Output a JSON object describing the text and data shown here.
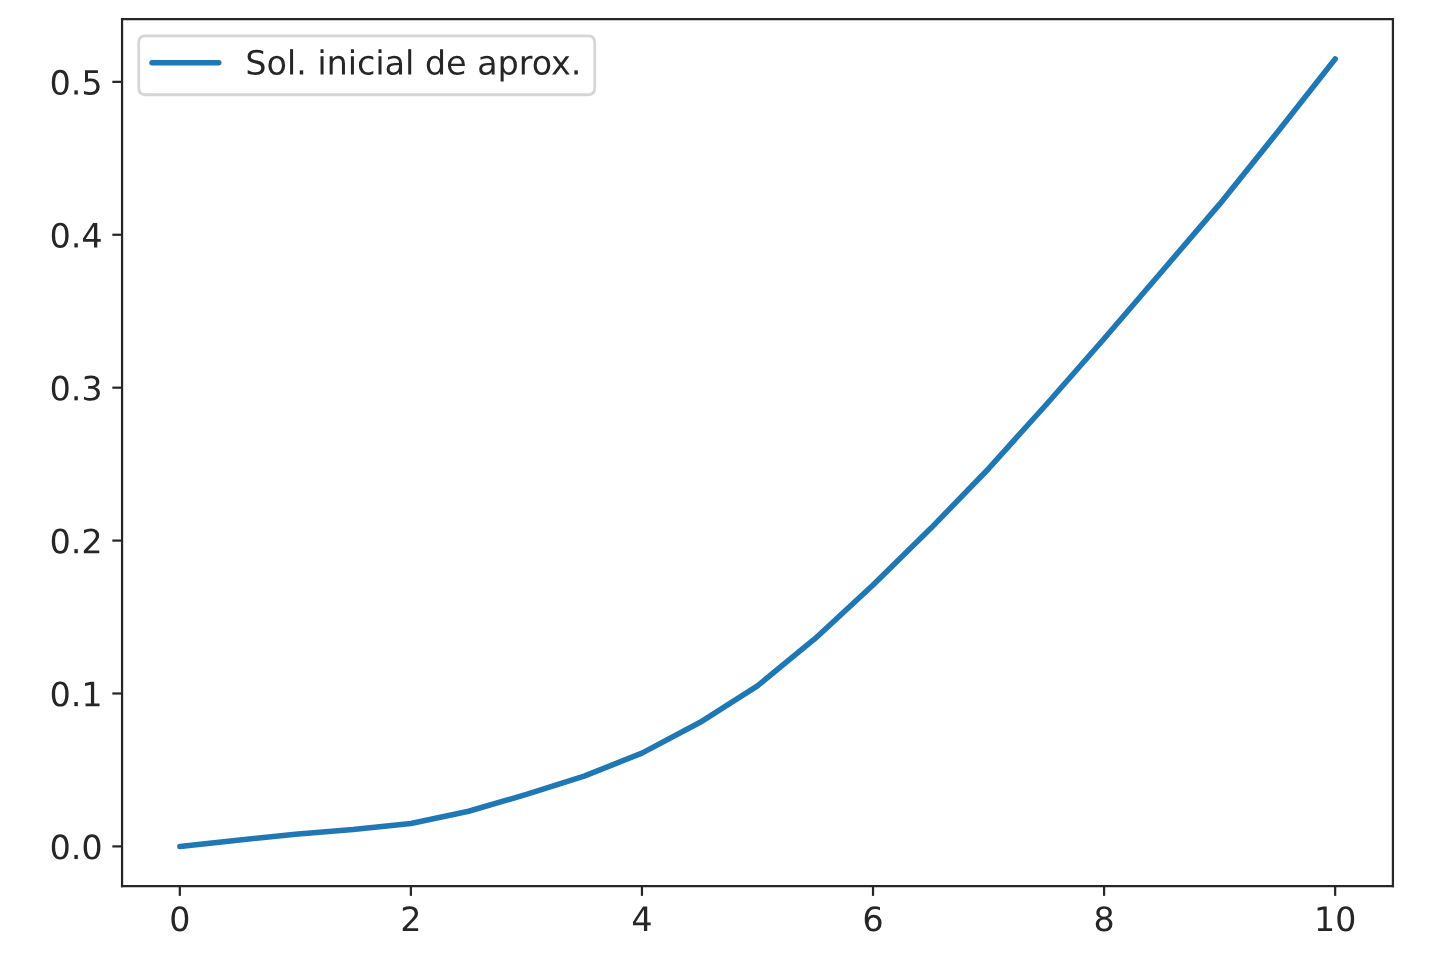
{
  "chart_data": {
    "type": "line",
    "x": [
      0,
      0.5,
      1,
      1.5,
      2,
      2.5,
      3,
      3.5,
      4,
      4.5,
      5,
      5.5,
      6,
      6.5,
      7,
      7.5,
      8,
      8.5,
      9,
      9.5,
      10
    ],
    "series": [
      {
        "name": "Sol. inicial de aprox.",
        "color": "#1f77b4",
        "values": [
          0,
          0.004,
          0.008,
          0.011,
          0.015,
          0.023,
          0.034,
          0.046,
          0.061,
          0.081,
          0.105,
          0.136,
          0.171,
          0.208,
          0.247,
          0.289,
          0.332,
          0.376,
          0.42,
          0.467,
          0.515
        ]
      }
    ],
    "xlim": [
      -0.5,
      10.5
    ],
    "xticks": [
      0,
      2,
      4,
      6,
      8,
      10
    ],
    "ylim": [
      -0.026,
      0.541
    ],
    "yticks": [
      {
        "value": 0,
        "label": "0.0"
      },
      0.1,
      0.2,
      0.3,
      0.4,
      0.5
    ],
    "legend": "top left"
  }
}
